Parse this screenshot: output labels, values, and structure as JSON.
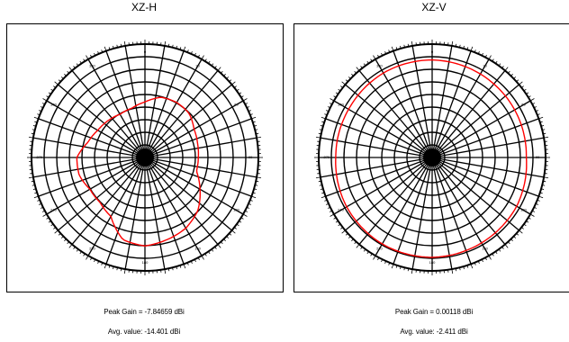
{
  "chart_data": [
    {
      "type": "polar-line",
      "title": "XZ-H",
      "angle_ticks_deg": [
        0,
        10,
        20,
        30,
        40,
        50,
        60,
        70,
        80,
        90,
        100,
        110,
        120,
        130,
        140,
        150,
        160,
        170,
        180,
        190,
        200,
        210,
        220,
        230,
        240,
        250,
        260,
        270,
        280,
        290,
        300,
        310,
        320,
        330,
        340,
        350
      ],
      "rings": 9,
      "grid": true,
      "series": [
        {
          "color": "#ff0000",
          "angle_deg": [
            0,
            15,
            30,
            45,
            60,
            75,
            90,
            105,
            120,
            135,
            150,
            165,
            180,
            195,
            210,
            225,
            240,
            255,
            270,
            285,
            300,
            315,
            330,
            345
          ],
          "radius_fraction": [
            0.49,
            0.55,
            0.56,
            0.55,
            0.5,
            0.48,
            0.47,
            0.47,
            0.56,
            0.66,
            0.72,
            0.75,
            0.78,
            0.75,
            0.6,
            0.56,
            0.56,
            0.6,
            0.6,
            0.52,
            0.48,
            0.46,
            0.44,
            0.45
          ]
        }
      ],
      "peak_gain_text": "Peak Gain = -7.84659 dBi",
      "avg_value_text": "Avg. value: -14.401 dBi"
    },
    {
      "type": "polar-line",
      "title": "XZ-V",
      "angle_ticks_deg": [
        0,
        10,
        20,
        30,
        40,
        50,
        60,
        70,
        80,
        90,
        100,
        110,
        120,
        130,
        140,
        150,
        160,
        170,
        180,
        190,
        200,
        210,
        220,
        230,
        240,
        250,
        260,
        270,
        280,
        290,
        300,
        310,
        320,
        330,
        340,
        350
      ],
      "rings": 9,
      "grid": true,
      "series": [
        {
          "color": "#ff0000",
          "angle_deg": [
            0,
            30,
            60,
            90,
            120,
            150,
            180,
            210,
            240,
            270,
            300,
            330
          ],
          "radius_fraction": [
            0.86,
            0.85,
            0.84,
            0.83,
            0.86,
            0.87,
            0.88,
            0.88,
            0.87,
            0.85,
            0.85,
            0.86
          ]
        }
      ],
      "peak_gain_text": "Peak Gain = 0.00118 dBi",
      "avg_value_text": "Avg. value: -2.411 dBi"
    }
  ]
}
